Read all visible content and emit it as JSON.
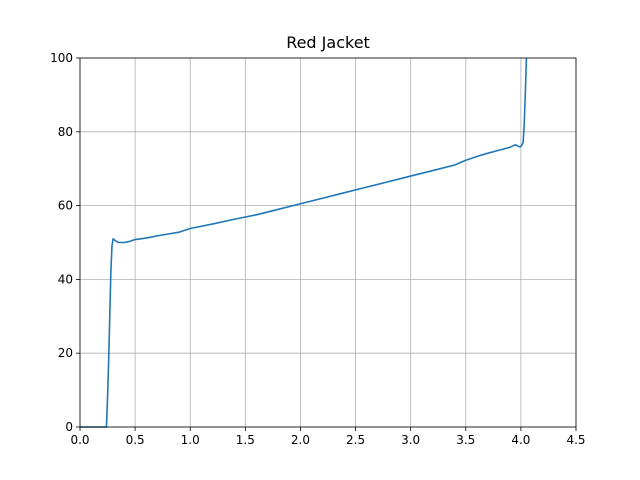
{
  "chart_data": {
    "type": "line",
    "title": "Red Jacket",
    "xlabel": "",
    "ylabel": "",
    "xlim": [
      0,
      4.5
    ],
    "ylim": [
      0,
      100
    ],
    "x_ticks": [
      "0.0",
      "0.5",
      "1.0",
      "1.5",
      "2.0",
      "2.5",
      "3.0",
      "3.5",
      "4.0",
      "4.5"
    ],
    "y_ticks": [
      "0",
      "20",
      "40",
      "60",
      "80",
      "100"
    ],
    "grid": true,
    "series": [
      {
        "color": "#1f77b4",
        "points": [
          [
            0.0,
            0.0
          ],
          [
            0.1,
            0.0
          ],
          [
            0.2,
            0.0
          ],
          [
            0.24,
            0.0
          ],
          [
            0.25,
            8.0
          ],
          [
            0.26,
            18.0
          ],
          [
            0.27,
            30.0
          ],
          [
            0.28,
            42.0
          ],
          [
            0.29,
            49.0
          ],
          [
            0.3,
            51.0
          ],
          [
            0.32,
            50.5
          ],
          [
            0.35,
            50.0
          ],
          [
            0.4,
            50.0
          ],
          [
            0.45,
            50.3
          ],
          [
            0.5,
            50.8
          ],
          [
            0.6,
            51.2
          ],
          [
            0.7,
            51.8
          ],
          [
            0.8,
            52.3
          ],
          [
            0.9,
            52.8
          ],
          [
            1.0,
            53.8
          ],
          [
            1.2,
            55.0
          ],
          [
            1.4,
            56.3
          ],
          [
            1.6,
            57.5
          ],
          [
            1.8,
            59.0
          ],
          [
            2.0,
            60.5
          ],
          [
            2.2,
            62.0
          ],
          [
            2.4,
            63.5
          ],
          [
            2.6,
            65.0
          ],
          [
            2.8,
            66.5
          ],
          [
            3.0,
            68.0
          ],
          [
            3.2,
            69.5
          ],
          [
            3.4,
            71.0
          ],
          [
            3.5,
            72.3
          ],
          [
            3.6,
            73.3
          ],
          [
            3.7,
            74.2
          ],
          [
            3.8,
            75.0
          ],
          [
            3.9,
            75.8
          ],
          [
            3.95,
            76.5
          ],
          [
            3.98,
            76.0
          ],
          [
            4.0,
            76.0
          ],
          [
            4.02,
            77.0
          ],
          [
            4.03,
            82.0
          ],
          [
            4.04,
            90.0
          ],
          [
            4.05,
            100.0
          ]
        ]
      }
    ]
  }
}
